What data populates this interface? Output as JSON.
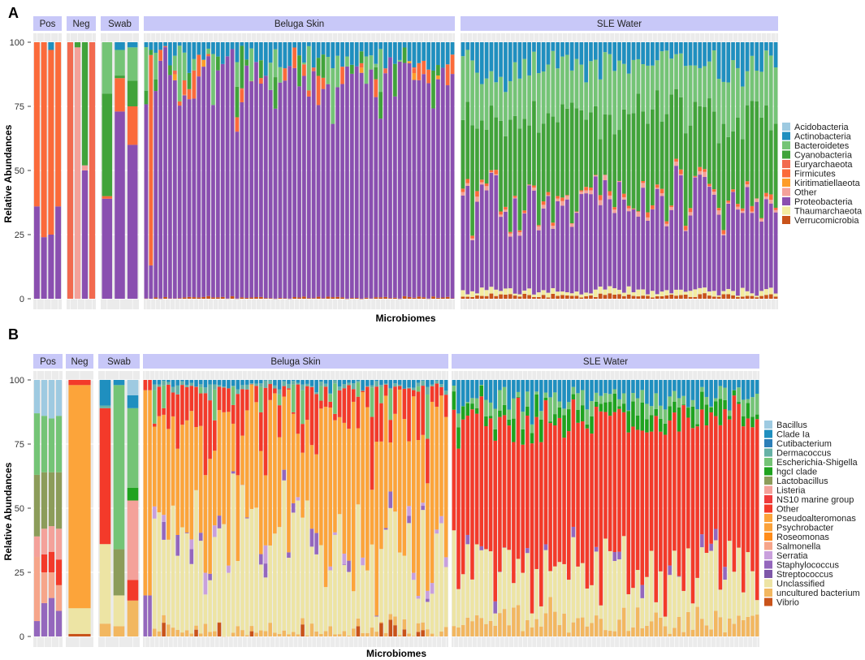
{
  "chart_data": [
    {
      "panel": "A",
      "type": "bar",
      "stacked": true,
      "xlabel": "Microbiomes",
      "ylabel": "Relative Abundances",
      "ylim": [
        0,
        100
      ],
      "yticks": [
        0,
        25,
        50,
        75,
        100
      ],
      "legend_position": "right",
      "legend": [
        {
          "name": "Acidobacteria",
          "color": "#9ecae1"
        },
        {
          "name": "Actinobacteria",
          "color": "#1f8fbf"
        },
        {
          "name": "Bacteroidetes",
          "color": "#74c476"
        },
        {
          "name": "Cyanobacteria",
          "color": "#41a33a"
        },
        {
          "name": "Euryarchaeota",
          "color": "#f26a4f"
        },
        {
          "name": "Firmicutes",
          "color": "#fb6a3a"
        },
        {
          "name": "Kiritimatiellaeota",
          "color": "#fd9d2a"
        },
        {
          "name": "Other",
          "color": "#f4a19a"
        },
        {
          "name": "Proteobacteria",
          "color": "#8a4fb0"
        },
        {
          "name": "Thaumarchaeota",
          "color": "#f3eca0"
        },
        {
          "name": "Verrucomicrobia",
          "color": "#c9531a"
        }
      ],
      "groups": [
        {
          "name": "Pos",
          "bars": [
            {
              "Proteobacteria": 36,
              "Firmicutes": 64
            },
            {
              "Proteobacteria": 24,
              "Firmicutes": 76
            },
            {
              "Proteobacteria": 25,
              "Firmicutes": 72,
              "Actinobacteria": 3
            },
            {
              "Proteobacteria": 36,
              "Firmicutes": 64
            }
          ]
        },
        {
          "name": "Neg",
          "bars": [
            {
              "Euryarchaeota": 100
            },
            {
              "Other": 98,
              "Cyanobacteria": 2
            },
            {
              "Proteobacteria": 50,
              "Cyanobacteria": 48,
              "Other": 2
            },
            {
              "Euryarchaeota": 100
            }
          ]
        },
        {
          "name": "Swab",
          "bars": [
            {
              "Proteobacteria": 39,
              "Firmicutes": 1,
              "Cyanobacteria": 40,
              "Bacteroidetes": 20
            },
            {
              "Proteobacteria": 73,
              "Firmicutes": 13,
              "Cyanobacteria": 1,
              "Bacteroidetes": 10,
              "Actinobacteria": 3
            },
            {
              "Proteobacteria": 60,
              "Firmicutes": 15,
              "Cyanobacteria": 10,
              "Bacteroidetes": 13,
              "Actinobacteria": 2
            }
          ]
        },
        {
          "name": "Beluga Skin",
          "generated_bars": 65
        },
        {
          "name": "SLE Water",
          "generated_bars": 67
        }
      ]
    },
    {
      "panel": "B",
      "type": "bar",
      "stacked": true,
      "xlabel": "Microbiomes",
      "ylabel": "Relative Abundances",
      "ylim": [
        0,
        100
      ],
      "yticks": [
        0,
        25,
        50,
        75,
        100
      ],
      "legend_position": "right",
      "legend": [
        {
          "name": "Bacillus",
          "color": "#9ecae1"
        },
        {
          "name": "Clade Ia",
          "color": "#1f8fbf"
        },
        {
          "name": "Cutibacterium",
          "color": "#2c7fb8"
        },
        {
          "name": "Dermacoccus",
          "color": "#66b2a6"
        },
        {
          "name": "Escherichia-Shigella",
          "color": "#74c476"
        },
        {
          "name": "hgcI clade",
          "color": "#1fa31f"
        },
        {
          "name": "Lactobacillus",
          "color": "#8c9c5a"
        },
        {
          "name": "Listeria",
          "color": "#f4a19a"
        },
        {
          "name": "NS10 marine group",
          "color": "#ef3b3b"
        },
        {
          "name": "Other",
          "color": "#f33a2a"
        },
        {
          "name": "Pseudoalteromonas",
          "color": "#fca43a"
        },
        {
          "name": "Psychrobacter",
          "color": "#fba23a"
        },
        {
          "name": "Roseomonas",
          "color": "#ff8c1a"
        },
        {
          "name": "Salmonella",
          "color": "#f6a58a"
        },
        {
          "name": "Serratia",
          "color": "#c9a0dc"
        },
        {
          "name": "Staphylococcus",
          "color": "#9467bd"
        },
        {
          "name": "Streptococcus",
          "color": "#7e57a8"
        },
        {
          "name": "Unclassified",
          "color": "#ede4a4"
        },
        {
          "name": "uncultured bacterium",
          "color": "#f2b760"
        },
        {
          "name": "Vibrio",
          "color": "#c9531a"
        }
      ],
      "groups": [
        {
          "name": "Pos",
          "bars": [
            {
              "Staphylococcus": 6,
              "Salmonella": 25,
              "Listeria": 8,
              "Lactobacillus": 24,
              "Escherichia-Shigella": 24,
              "Bacillus": 13
            },
            {
              "Staphylococcus": 13,
              "Salmonella": 12,
              "Other": 7,
              "Listeria": 10,
              "Lactobacillus": 22,
              "Escherichia-Shigella": 22,
              "Bacillus": 14
            },
            {
              "Staphylococcus": 15,
              "Salmonella": 10,
              "Other": 8,
              "Listeria": 10,
              "Lactobacillus": 21,
              "Escherichia-Shigella": 21,
              "Bacillus": 15
            },
            {
              "Staphylococcus": 10,
              "Salmonella": 10,
              "Other": 10,
              "Listeria": 12,
              "Lactobacillus": 22,
              "Escherichia-Shigella": 22,
              "Bacillus": 14
            }
          ]
        },
        {
          "name": "Neg",
          "bars": [
            {
              "Vibrio": 1,
              "Unclassified": 10,
              "Pseudoalteromonas": 87,
              "Other": 2
            }
          ]
        },
        {
          "name": "Swab",
          "bars": [
            {
              "uncultured bacterium": 5,
              "Unclassified": 31,
              "Other": 53,
              "Dermacoccus": 1,
              "Clade Ia": 10
            },
            {
              "uncultured bacterium": 4,
              "Unclassified": 12,
              "Lactobacillus": 18,
              "Escherichia-Shigella": 64,
              "Clade Ia": 2
            },
            {
              "uncultured bacterium": 14,
              "Other": 8,
              "Listeria": 31,
              "hgcI clade": 5,
              "Escherichia-Shigella": 31,
              "Clade Ia": 5,
              "Bacillus": 6
            }
          ]
        },
        {
          "name": "Beluga Skin",
          "generated_bars": 66
        },
        {
          "name": "SLE Water",
          "generated_bars": 67
        }
      ]
    }
  ],
  "labels": {
    "panel_a": "A",
    "panel_b": "B",
    "xlabel": "Microbiomes",
    "ylabel": "Relative Abundances",
    "groups": [
      "Pos",
      "Neg",
      "Swab",
      "Beluga Skin",
      "SLE Water"
    ]
  }
}
